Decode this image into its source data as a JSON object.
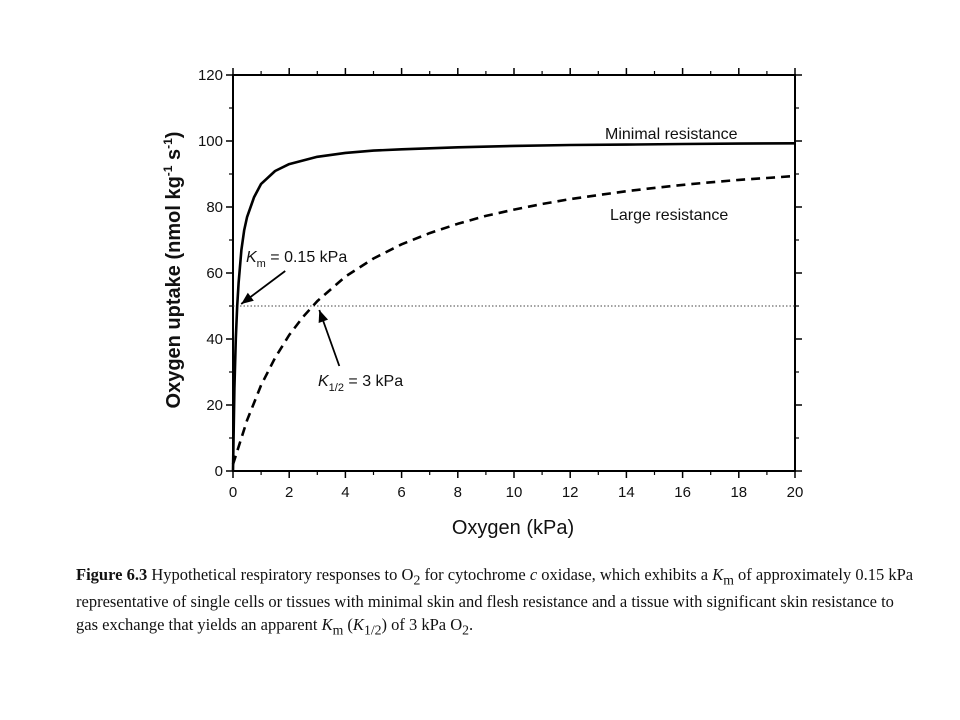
{
  "chart_data": {
    "type": "line",
    "xlabel": "Oxygen (kPa)",
    "ylabel": "Oxygen uptake (nmol kg",
    "ylabel_sup1": "-1",
    "ylabel_mid": " s",
    "ylabel_sup2": "-1",
    "ylabel_end": ")",
    "xlim": [
      0,
      20
    ],
    "ylim": [
      0,
      120
    ],
    "x_ticks": [
      "0",
      "2",
      "4",
      "6",
      "8",
      "10",
      "12",
      "14",
      "16",
      "18",
      "20"
    ],
    "y_ticks": [
      "0",
      "20",
      "40",
      "60",
      "80",
      "100",
      "120"
    ],
    "grid": false,
    "series": [
      {
        "name": "Minimal resistance",
        "style": "solid",
        "x": [
          0,
          0.05,
          0.1,
          0.15,
          0.2,
          0.3,
          0.4,
          0.5,
          0.75,
          1,
          1.5,
          2,
          3,
          4,
          5,
          6,
          8,
          10,
          12,
          14,
          16,
          18,
          20
        ],
        "y": [
          0,
          25,
          40,
          50,
          57,
          67,
          73,
          77,
          83,
          87,
          90.9,
          93,
          95.2,
          96.4,
          97.1,
          97.5,
          98.1,
          98.5,
          98.8,
          98.9,
          99.1,
          99.2,
          99.3
        ]
      },
      {
        "name": "Large resistance",
        "style": "dashed",
        "x": [
          0,
          0.5,
          1,
          1.5,
          2,
          2.5,
          3,
          4,
          5,
          6,
          7,
          8,
          9,
          10,
          11,
          12,
          13,
          14,
          15,
          16,
          17,
          18,
          19,
          20
        ],
        "y": [
          2,
          15.4,
          26,
          34.3,
          41.2,
          46.8,
          51.5,
          58.9,
          64.4,
          68.7,
          72.1,
          74.9,
          77.3,
          79.2,
          80.9,
          82.4,
          83.6,
          84.8,
          85.8,
          86.7,
          87.5,
          88.2,
          88.8,
          89.4
        ]
      }
    ],
    "reference_line": {
      "y": 50,
      "style": "dotted"
    },
    "annotations": {
      "km_label_main": "K",
      "km_label_sub": "m",
      "km_label_rest": " = 0.15 kPa",
      "km_x": 0.15,
      "km_y": 50,
      "khalf_label_main": "K",
      "khalf_label_sub": "1/2",
      "khalf_label_rest": " = 3 kPa",
      "khalf_x": 3,
      "khalf_y": 50
    },
    "line_colors": {
      "minimal": "#000000",
      "large": "#000000",
      "reference": "#444444"
    }
  },
  "caption": {
    "label": "Figure 6.3",
    "text_1": " Hypothetical respiratory responses to O",
    "o2_sub": "2",
    "text_2": " for cytochrome ",
    "c_italic": "c",
    "text_3": " oxidase, which exhibits a ",
    "km_1": "K",
    "km_1_sub": "m",
    "text_4": " of approximately 0.15 kPa representative of single cells or tissues with minimal skin and flesh resistance and a tissue with significant skin resistance to gas exchange that yields an apparent ",
    "km_2": "K",
    "km_2_sub": "m",
    "text_5": " (",
    "khalf": "K",
    "khalf_sub": "1/2",
    "text_6": ") of 3 kPa O",
    "o2_sub_2": "2",
    "text_7": "."
  }
}
